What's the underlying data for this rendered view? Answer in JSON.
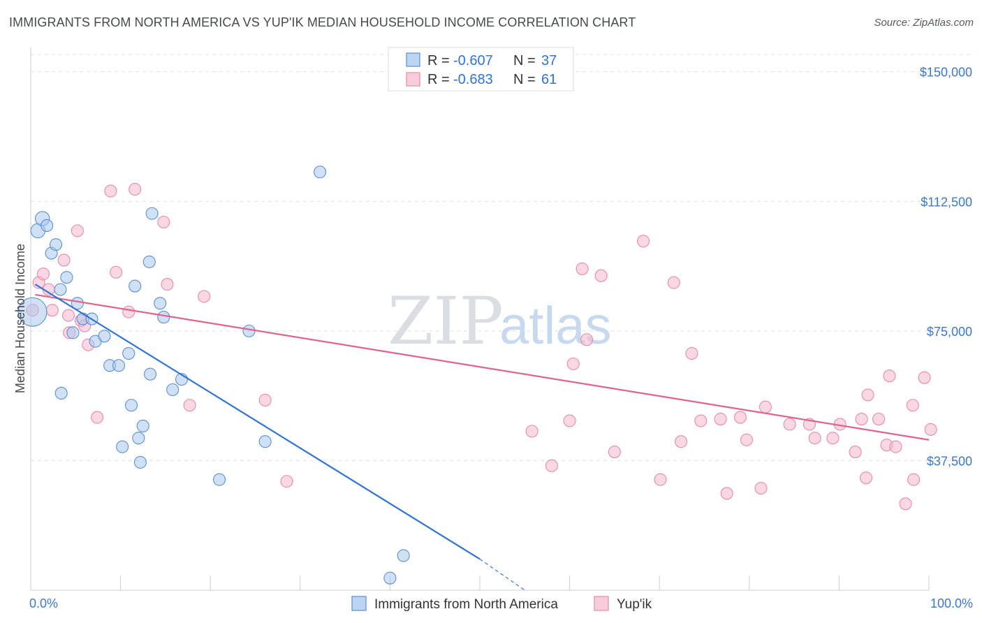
{
  "header": {
    "title": "IMMIGRANTS FROM NORTH AMERICA VS YUP'IK MEDIAN HOUSEHOLD INCOME CORRELATION CHART",
    "source": "Source: ZipAtlas.com"
  },
  "watermark": {
    "zip": "ZIP",
    "atlas": "atlas"
  },
  "colors": {
    "blue_fill": "#a9c8ee",
    "blue_stroke": "#5b8fd6",
    "blue_line": "#2f74d0",
    "pink_fill": "#f5b8cc",
    "pink_stroke": "#e88aaa",
    "pink_line": "#e0628e",
    "tick_text": "#3d78c8",
    "grid": "#dde0e6"
  },
  "chart_data": {
    "type": "scatter",
    "title": "IMMIGRANTS FROM NORTH AMERICA VS YUP'IK MEDIAN HOUSEHOLD INCOME CORRELATION CHART",
    "xlabel": "",
    "ylabel": "Median Household Income",
    "xlim": [
      0,
      100
    ],
    "ylim": [
      0,
      155000
    ],
    "x_tick_labels": [
      "0.0%",
      "100.0%"
    ],
    "y_ticks": [
      37500,
      75000,
      112500,
      150000
    ],
    "y_tick_labels": [
      "$37,500",
      "$75,000",
      "$112,500",
      "$150,000"
    ],
    "grid": "horizontal dashed",
    "legend_position": "top-center",
    "stats": [
      {
        "r_label": "R =",
        "r": "-0.607",
        "n_label": "N =",
        "n": "37"
      },
      {
        "r_label": "R =",
        "r": "-0.683",
        "n_label": "N =",
        "n": "61"
      }
    ],
    "series": [
      {
        "name": "Immigrants from North America",
        "color": "blue",
        "points": [
          [
            0.2,
            80500,
            2.4
          ],
          [
            0.8,
            104000,
            1.2
          ],
          [
            1.3,
            107500,
            1.2
          ],
          [
            1.8,
            105500,
            1.0
          ],
          [
            2.3,
            97500,
            1.0
          ],
          [
            2.8,
            100000,
            1.0
          ],
          [
            3.3,
            87000,
            1.0
          ],
          [
            4.0,
            90500,
            1.0
          ],
          [
            4.7,
            74500,
            1.0
          ],
          [
            5.2,
            83000,
            1.0
          ],
          [
            5.8,
            78500,
            1.0
          ],
          [
            6.8,
            78500,
            1.0
          ],
          [
            7.2,
            72000,
            1.0
          ],
          [
            8.2,
            73500,
            1.0
          ],
          [
            8.8,
            65000,
            1.0
          ],
          [
            9.8,
            65000,
            1.0
          ],
          [
            10.9,
            68500,
            1.0
          ],
          [
            11.2,
            53500,
            1.0
          ],
          [
            12.0,
            44000,
            1.0
          ],
          [
            12.5,
            47500,
            1.0
          ],
          [
            13.3,
            62500,
            1.0
          ],
          [
            14.4,
            83000,
            1.0
          ],
          [
            14.8,
            79000,
            1.0
          ],
          [
            15.8,
            58000,
            1.0
          ],
          [
            16.8,
            61000,
            1.0
          ],
          [
            24.3,
            75000,
            1.0
          ],
          [
            26.1,
            43000,
            1.0
          ],
          [
            21.0,
            32000,
            1.0
          ],
          [
            3.4,
            57000,
            1.0
          ],
          [
            10.2,
            41500,
            1.0
          ],
          [
            12.2,
            37000,
            1.0
          ],
          [
            13.5,
            109000,
            1.0
          ],
          [
            13.2,
            95000,
            1.0
          ],
          [
            11.6,
            88000,
            1.0
          ],
          [
            32.2,
            121000,
            1.0
          ],
          [
            41.5,
            10000,
            1.0
          ],
          [
            40.0,
            3500,
            1.0
          ]
        ]
      },
      {
        "name": "Yup'ik",
        "color": "pink",
        "points": [
          [
            0.2,
            81000,
            1.0
          ],
          [
            0.9,
            89000,
            1.0
          ],
          [
            1.4,
            91500,
            1.0
          ],
          [
            2.0,
            87000,
            1.0
          ],
          [
            2.4,
            81000,
            1.0
          ],
          [
            3.7,
            95500,
            1.0
          ],
          [
            4.3,
            74500,
            1.0
          ],
          [
            4.2,
            79500,
            1.0
          ],
          [
            5.6,
            78000,
            1.0
          ],
          [
            6.0,
            76500,
            1.0
          ],
          [
            6.4,
            71000,
            1.0
          ],
          [
            5.2,
            104000,
            1.0
          ],
          [
            7.4,
            50000,
            1.0
          ],
          [
            8.9,
            115500,
            1.0
          ],
          [
            9.5,
            92000,
            1.0
          ],
          [
            10.9,
            80500,
            1.0
          ],
          [
            11.6,
            116000,
            1.0
          ],
          [
            14.8,
            106500,
            1.0
          ],
          [
            15.2,
            88500,
            1.0
          ],
          [
            17.7,
            53500,
            1.0
          ],
          [
            19.3,
            85000,
            1.0
          ],
          [
            26.1,
            55000,
            1.0
          ],
          [
            28.5,
            31500,
            1.0
          ],
          [
            55.8,
            46000,
            1.0
          ],
          [
            58.0,
            36000,
            1.0
          ],
          [
            60.0,
            49000,
            1.0
          ],
          [
            60.4,
            65500,
            1.0
          ],
          [
            61.4,
            93000,
            1.0
          ],
          [
            61.9,
            72500,
            1.0
          ],
          [
            63.5,
            91000,
            1.0
          ],
          [
            65.0,
            40000,
            1.0
          ],
          [
            68.2,
            101000,
            1.0
          ],
          [
            70.1,
            32000,
            1.0
          ],
          [
            71.6,
            89000,
            1.0
          ],
          [
            72.4,
            43000,
            1.0
          ],
          [
            73.6,
            68500,
            1.0
          ],
          [
            74.6,
            49000,
            1.0
          ],
          [
            76.8,
            49500,
            1.0
          ],
          [
            77.5,
            28000,
            1.0
          ],
          [
            79.0,
            50000,
            1.0
          ],
          [
            79.7,
            43500,
            1.0
          ],
          [
            81.3,
            29500,
            1.0
          ],
          [
            81.8,
            53000,
            1.0
          ],
          [
            84.5,
            48000,
            1.0
          ],
          [
            86.7,
            48000,
            1.0
          ],
          [
            87.3,
            44000,
            1.0
          ],
          [
            89.3,
            44000,
            1.0
          ],
          [
            90.1,
            48000,
            1.0
          ],
          [
            91.8,
            40000,
            1.0
          ],
          [
            92.5,
            49500,
            1.0
          ],
          [
            93.0,
            32500,
            1.0
          ],
          [
            93.2,
            56500,
            1.0
          ],
          [
            94.4,
            49500,
            1.0
          ],
          [
            95.3,
            42000,
            1.0
          ],
          [
            95.6,
            62000,
            1.0
          ],
          [
            96.3,
            41500,
            1.0
          ],
          [
            97.4,
            25000,
            1.0
          ],
          [
            98.2,
            53500,
            1.0
          ],
          [
            98.3,
            32000,
            1.0
          ],
          [
            99.5,
            61500,
            1.0
          ],
          [
            100.2,
            46500,
            1.0
          ]
        ]
      }
    ],
    "trend_lines": [
      {
        "series": "Immigrants from North America",
        "x0": 0.5,
        "y0": 88500,
        "x1": 50,
        "y1": 9000,
        "dash_to_x": 55,
        "dash_to_y": 0
      },
      {
        "series": "Yup'ik",
        "x0": 0.5,
        "y0": 85500,
        "x1": 100,
        "y1": 43500
      }
    ],
    "x_minor_ticks": 10
  }
}
